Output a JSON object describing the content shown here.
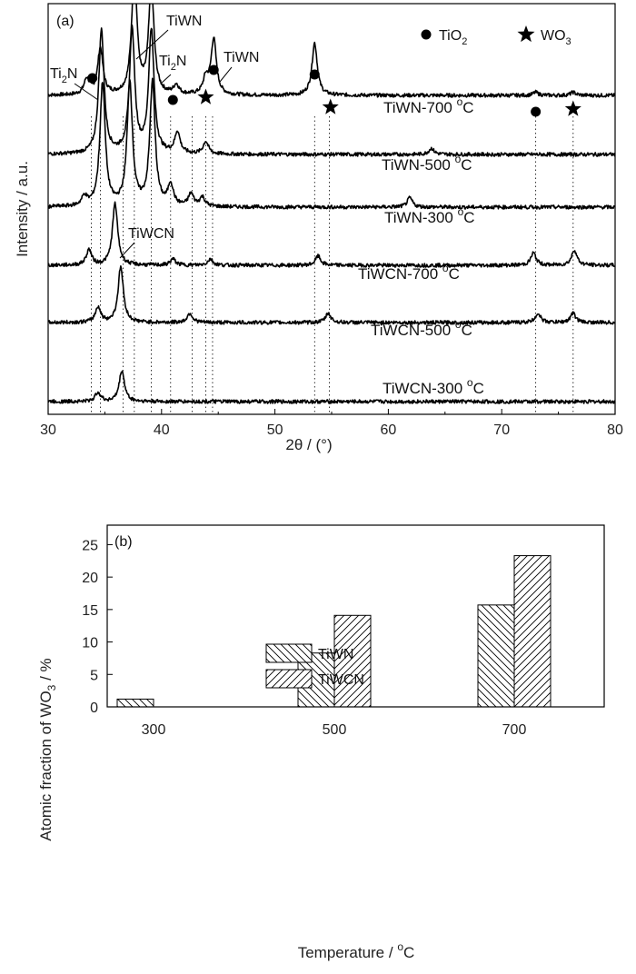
{
  "chart_data": [
    {
      "type": "line",
      "panel_label": "(a)",
      "xlabel_symbol": "2θ",
      "xlabel_unit": " / (°)",
      "ylabel": "Intensity / a.u.",
      "xlim": [
        30,
        80
      ],
      "xticks": [
        30,
        40,
        50,
        60,
        70,
        80
      ],
      "legend": {
        "position": "top-right",
        "entries": [
          {
            "marker": "circle",
            "name": "TiO",
            "sub": "2"
          },
          {
            "marker": "star",
            "name": "WO",
            "sub": "3"
          }
        ]
      },
      "reference_lines_2theta": [
        33.8,
        34.6,
        36.6,
        37.6,
        39.1,
        40.8,
        42.7,
        43.9,
        44.5,
        53.5,
        54.8,
        73.0,
        76.3
      ],
      "series": [
        {
          "name": "TiWN-700 °C",
          "label_main": "TiWN-700 ",
          "label_deg": "o",
          "label_unit": "C",
          "peaks": [
            [
              33.4,
              0.5
            ],
            [
              34.6,
              1.5
            ],
            [
              37.6,
              4.0
            ],
            [
              39.1,
              3.5
            ],
            [
              41.3,
              0.3
            ],
            [
              43.9,
              0.5
            ],
            [
              44.6,
              1.8
            ],
            [
              53.5,
              1.7
            ],
            [
              73.0,
              0.1
            ],
            [
              76.3,
              0.1
            ]
          ]
        },
        {
          "name": "TiWN-500 °C",
          "label_main": "TiWN-500 ",
          "label_deg": "o",
          "label_unit": "C",
          "peaks": [
            [
              34.7,
              4.0
            ],
            [
              37.4,
              4.0
            ],
            [
              39.1,
              4.0
            ],
            [
              41.4,
              0.7
            ],
            [
              43.9,
              0.4
            ],
            [
              63.8,
              0.2
            ]
          ]
        },
        {
          "name": "TiWN-300 °C",
          "label_main": "TiWN-300 ",
          "label_deg": "o",
          "label_unit": "C",
          "peaks": [
            [
              33.2,
              0.3
            ],
            [
              34.8,
              4.0
            ],
            [
              37.2,
              4.0
            ],
            [
              39.2,
              4.0
            ],
            [
              40.8,
              0.7
            ],
            [
              42.6,
              0.4
            ],
            [
              43.6,
              0.3
            ],
            [
              61.9,
              0.3
            ]
          ]
        },
        {
          "name": "TiWCN-700 °C",
          "label_main": "TiWCN-700 ",
          "label_deg": "o",
          "label_unit": "C",
          "peaks": [
            [
              33.6,
              0.5
            ],
            [
              35.9,
              2.0
            ],
            [
              41.0,
              0.2
            ],
            [
              44.3,
              0.2
            ],
            [
              53.8,
              0.3
            ],
            [
              72.8,
              0.4
            ],
            [
              76.4,
              0.5
            ]
          ]
        },
        {
          "name": "TiWCN-500 °C",
          "label_main": "TiWCN-500 ",
          "label_deg": "o",
          "label_unit": "C",
          "peaks": [
            [
              34.4,
              0.5
            ],
            [
              36.4,
              1.8
            ],
            [
              42.5,
              0.3
            ],
            [
              54.7,
              0.3
            ],
            [
              73.2,
              0.3
            ],
            [
              76.3,
              0.3
            ]
          ]
        },
        {
          "name": "TiWCN-300 °C",
          "label_main": "TiWCN-300 ",
          "label_deg": "o",
          "label_unit": "C",
          "peaks": [
            [
              34.4,
              0.3
            ],
            [
              36.5,
              1.0
            ]
          ]
        }
      ],
      "annotations": [
        {
          "text": "Ti",
          "sub": "2",
          "tail": "N"
        },
        {
          "text": "TiWN",
          "sub": "",
          "tail": ""
        },
        {
          "text": "Ti",
          "sub": "2",
          "tail": "N"
        },
        {
          "text": "TiWN",
          "sub": "",
          "tail": ""
        },
        {
          "text": "TiWCN",
          "sub": "",
          "tail": ""
        }
      ],
      "markers": [
        {
          "type": "circle",
          "x": 33.9,
          "series": 0
        },
        {
          "type": "circle",
          "x": 41.0,
          "series": 0
        },
        {
          "type": "star",
          "x": 43.9,
          "series": 0
        },
        {
          "type": "circle",
          "x": 44.6,
          "series": 0
        },
        {
          "type": "circle",
          "x": 53.5,
          "series": 0
        },
        {
          "type": "star",
          "x": 54.9,
          "series": 0
        },
        {
          "type": "circle",
          "x": 73.0,
          "series": 0
        },
        {
          "type": "star",
          "x": 76.3,
          "series": 0
        }
      ]
    },
    {
      "type": "bar",
      "panel_label": "(b)",
      "categories": [
        "300",
        "500",
        "700"
      ],
      "xlabel_main": "Temperature / ",
      "xlabel_deg": "o",
      "xlabel_unit": "C",
      "ylabel_main": "Atomic fraction of WO",
      "ylabel_sub": "3",
      "ylabel_unit": " / %",
      "ylim": [
        0,
        28
      ],
      "yticks": [
        0,
        5,
        10,
        15,
        20,
        25
      ],
      "legend": {
        "position": "top-center"
      },
      "series": [
        {
          "name": "TiWN",
          "values": [
            1.2,
            8.3,
            15.7
          ],
          "hatch": "backslash"
        },
        {
          "name": "TiWCN",
          "values": [
            0,
            14.1,
            23.3
          ],
          "hatch": "slash"
        }
      ]
    }
  ]
}
